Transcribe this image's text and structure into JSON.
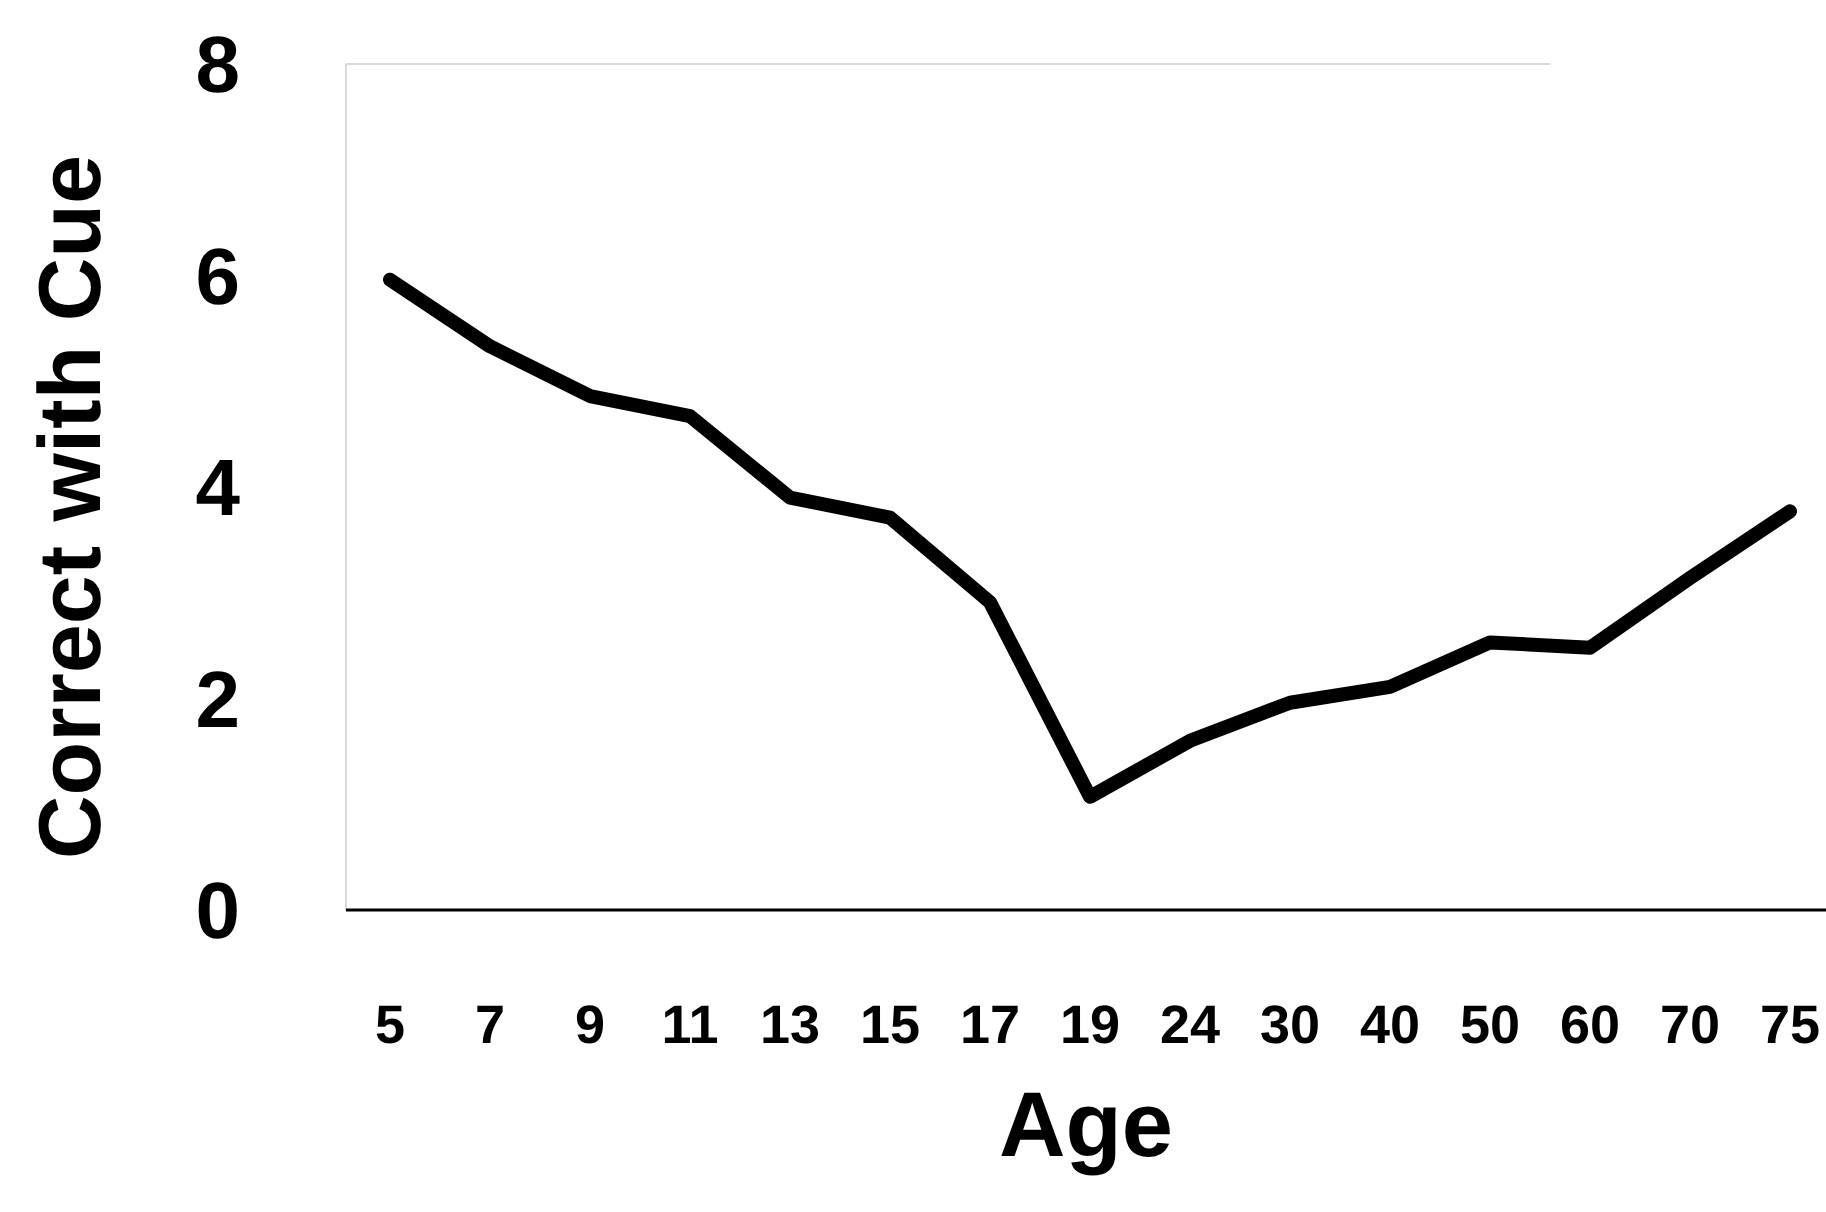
{
  "chart_data": {
    "type": "line",
    "xlabel": "Age",
    "ylabel": "Correct with Cue",
    "categories": [
      "5",
      "7",
      "9",
      "11",
      "13",
      "15",
      "17",
      "19",
      "24",
      "30",
      "40",
      "50",
      "60",
      "70",
      "75"
    ],
    "series": [
      {
        "color": "#000000",
        "values": [
          5.96,
          5.33,
          4.86,
          4.67,
          3.9,
          3.71,
          2.91,
          1.07,
          1.6,
          1.96,
          2.11,
          2.53,
          2.48,
          3.14,
          3.77
        ]
      }
    ],
    "ylim": [
      0,
      8
    ],
    "yticks": [
      0,
      2,
      4,
      6,
      8
    ],
    "grid": false,
    "marker": "none",
    "line_style": "solid"
  }
}
